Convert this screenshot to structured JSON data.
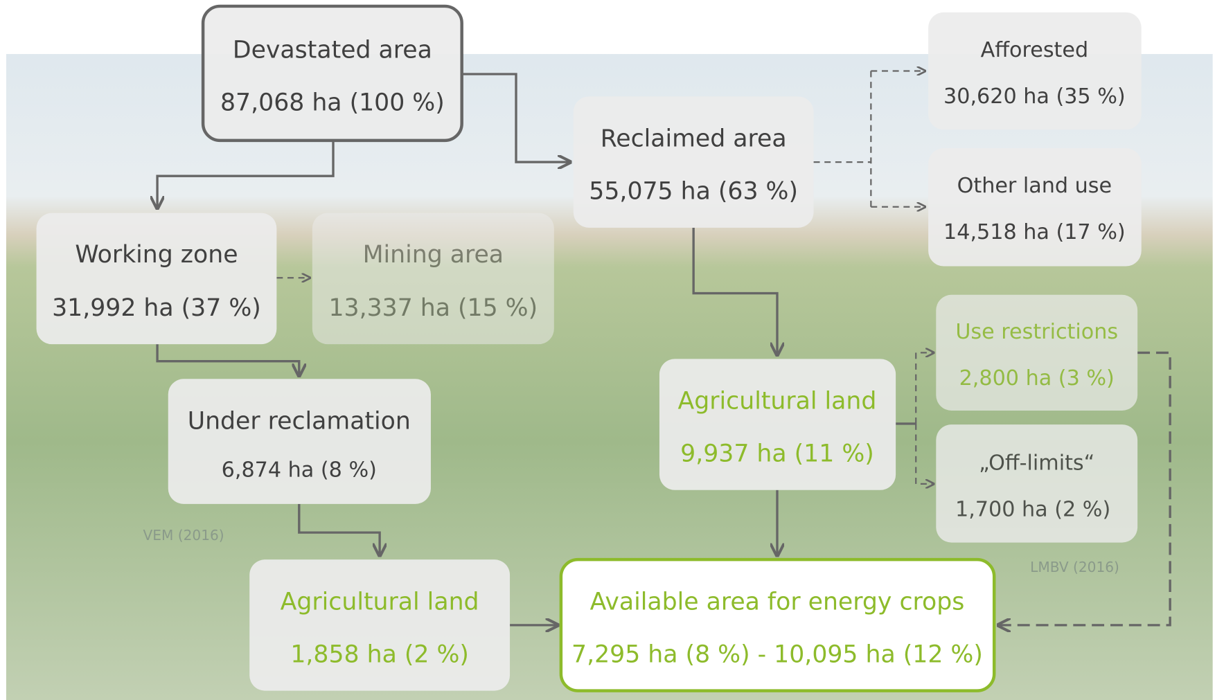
{
  "nodes": [
    {
      "label": "Devastated area",
      "value": "87,068 ha (100 %)"
    },
    {
      "label": "Reclaimed area",
      "value": "55,075 ha (63 %)"
    },
    {
      "label": "Afforested",
      "value": "30,620 ha (35 %)"
    },
    {
      "label": "Other land use",
      "value": "14,518 ha (17 %)"
    },
    {
      "label": "Working zone",
      "value": "31,992 ha (37 %)"
    },
    {
      "label": "Mining area",
      "value": "13,337 ha (15 %)"
    },
    {
      "label": "Under reclamation",
      "value": "6,874 ha (8 %)"
    },
    {
      "label": "Agricultural land",
      "value": "9,937 ha (11 %)"
    },
    {
      "label": "Use restrictions",
      "value": "2,800 ha (3 %)"
    },
    {
      "label": "„Off-limits“",
      "value": "1,700 ha (2 %)"
    },
    {
      "label": "Agricultural land",
      "value": "1,858 ha (2 %)"
    },
    {
      "label": "Available area for energy crops",
      "value": "7,295 ha (8 %) - 10,095 ha (12 %)"
    }
  ],
  "sources": [
    "VEM (2016)",
    "LMBV (2016)"
  ]
}
